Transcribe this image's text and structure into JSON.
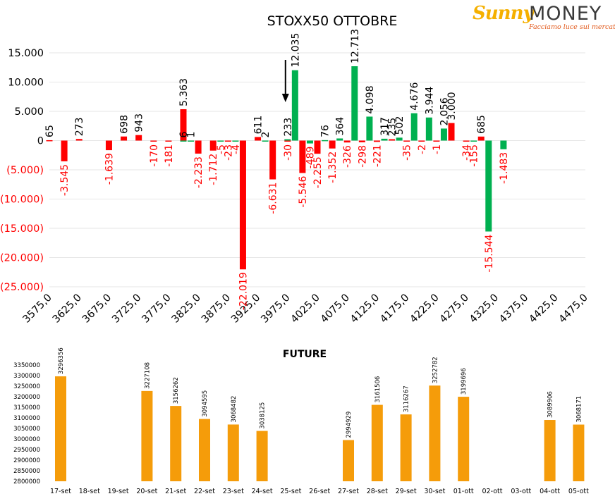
{
  "logo": {
    "brand_left": "Sunny",
    "brand_right": "MONEY",
    "tagline": "Facciamo luce sui mercati"
  },
  "colors": {
    "positive": "#00b050",
    "negative": "#ff0000",
    "future_bar": "#f59c0a",
    "grid": "#e6e6e6",
    "text": "#000000"
  },
  "chart_data": [
    {
      "type": "bar",
      "title": "STOXX50 OTTOBRE",
      "xlabel": "",
      "ylabel": "",
      "ylim": [
        -25000,
        15000
      ],
      "y_ticks": [
        15000,
        10000,
        5000,
        0,
        -5000,
        -10000,
        -15000,
        -20000,
        -25000
      ],
      "y_tick_labels": [
        "15.000",
        "10.000",
        "5.000",
        "0",
        "(5.000)",
        "(10.000)",
        "(15.000)",
        "(20.000)",
        "(25.000)"
      ],
      "x_tick_labels": [
        "3575,0",
        "3625,0",
        "3675,0",
        "3725,0",
        "3775,0",
        "3825,0",
        "3875,0",
        "3925,0",
        "3975,0",
        "4025,0",
        "4075,0",
        "4125,0",
        "4175,0",
        "4225,0",
        "4275,0",
        "4325,0",
        "4375,0",
        "4425,0",
        "4475,0"
      ],
      "grid": true,
      "annotation": "arrow pointing down at 3975,0",
      "series": [
        {
          "color": "#ff0000",
          "points": [
            {
              "strike": 3575,
              "value": 65,
              "label": "65"
            },
            {
              "strike": 3600,
              "value": -3545,
              "label": "-3.545"
            },
            {
              "strike": 3625,
              "value": 273,
              "label": "273"
            },
            {
              "strike": 3675,
              "value": -1639,
              "label": "-1.639"
            },
            {
              "strike": 3700,
              "value": 698,
              "label": "698"
            },
            {
              "strike": 3725,
              "value": 943,
              "label": "943"
            },
            {
              "strike": 3750,
              "value": -170,
              "label": "-170"
            },
            {
              "strike": 3775,
              "value": -181,
              "label": "-181"
            },
            {
              "strike": 3800,
              "value": 5363,
              "label": "5.363"
            },
            {
              "strike": 3825,
              "value": -2233,
              "label": "-2.233"
            },
            {
              "strike": 3850,
              "value": -1712,
              "label": "-1.712"
            },
            {
              "strike": 3875,
              "value": -23,
              "label": "-23"
            },
            {
              "strike": 3900,
              "value": -22019,
              "label": "-22.019"
            },
            {
              "strike": 3925,
              "value": 611,
              "label": "611"
            },
            {
              "strike": 3950,
              "value": -6631,
              "label": "-6.631"
            },
            {
              "strike": 3975,
              "value": -30,
              "label": "-30"
            },
            {
              "strike": 4000,
              "value": -5546,
              "label": "-5.546"
            },
            {
              "strike": 4025,
              "value": -2255,
              "label": "-2.255"
            },
            {
              "strike": 4050,
              "value": -1352,
              "label": "-1.352"
            },
            {
              "strike": 4075,
              "value": -326,
              "label": "-326"
            },
            {
              "strike": 4100,
              "value": -298,
              "label": "-298"
            },
            {
              "strike": 4125,
              "value": -221,
              "label": "-221"
            },
            {
              "strike": 4150,
              "value": 235,
              "label": "235"
            },
            {
              "strike": 4175,
              "value": -35,
              "label": "-35"
            },
            {
              "strike": 4200,
              "value": -2,
              "label": "-2"
            },
            {
              "strike": 4225,
              "value": -1,
              "label": "-1"
            },
            {
              "strike": 4250,
              "value": 3000,
              "label": "3.000"
            },
            {
              "strike": 4275,
              "value": -34,
              "label": "-34"
            },
            {
              "strike": 4300,
              "value": 685,
              "label": "685"
            }
          ]
        },
        {
          "color": "#00b050",
          "points": [
            {
              "strike": 3800,
              "value": 6,
              "label": "6"
            },
            {
              "strike": 3812.5,
              "value": 1,
              "label": "1"
            },
            {
              "strike": 3862.5,
              "value": -5,
              "label": "-5"
            },
            {
              "strike": 3887.5,
              "value": -4,
              "label": "-4"
            },
            {
              "strike": 3937.5,
              "value": 2,
              "label": "2"
            },
            {
              "strike": 3975,
              "value": 233,
              "label": "233"
            },
            {
              "strike": 3987.5,
              "value": 12035,
              "label": "12.035"
            },
            {
              "strike": 4012.5,
              "value": -489,
              "label": "-489"
            },
            {
              "strike": 4037.5,
              "value": 76,
              "label": "76"
            },
            {
              "strike": 4062.5,
              "value": 364,
              "label": "364"
            },
            {
              "strike": 4087.5,
              "value": 12713,
              "label": "12.713"
            },
            {
              "strike": 4112.5,
              "value": 4098,
              "label": "4.098"
            },
            {
              "strike": 4137.5,
              "value": 317,
              "label": "317"
            },
            {
              "strike": 4162.5,
              "value": 502,
              "label": "502"
            },
            {
              "strike": 4187.5,
              "value": 4676,
              "label": "4.676"
            },
            {
              "strike": 4212.5,
              "value": 3944,
              "label": "3.944"
            },
            {
              "strike": 4237.5,
              "value": 2056,
              "label": "2.056"
            },
            {
              "strike": 4287.5,
              "value": -155,
              "label": "-155"
            },
            {
              "strike": 4312.5,
              "value": -15544,
              "label": "-15.544"
            },
            {
              "strike": 4337.5,
              "value": -1483,
              "label": "-1.483"
            }
          ]
        }
      ]
    },
    {
      "type": "bar",
      "title": "FUTURE",
      "xlabel": "",
      "ylabel": "",
      "ylim": [
        2800000,
        3350000
      ],
      "y_ticks": [
        2800000,
        2850000,
        2900000,
        2950000,
        3000000,
        3050000,
        3100000,
        3150000,
        3200000,
        3250000,
        3300000,
        3350000
      ],
      "y_tick_labels": [
        "2800000",
        "2850000",
        "2900000",
        "2950000",
        "3000000",
        "3050000",
        "3100000",
        "3150000",
        "3200000",
        "3250000",
        "3300000",
        "3350000"
      ],
      "grid": false,
      "categories": [
        "17-set",
        "18-set",
        "19-set",
        "20-set",
        "21-set",
        "22-set",
        "23-set",
        "24-set",
        "25-set",
        "26-set",
        "27-set",
        "28-set",
        "29-set",
        "30-set",
        "01-ott",
        "02-ott",
        "03-ott",
        "04-ott",
        "05-ott"
      ],
      "values": [
        3296356,
        null,
        null,
        3227108,
        3156262,
        3094595,
        3068482,
        3038125,
        null,
        null,
        2994929,
        3161506,
        3116267,
        3252782,
        3199696,
        null,
        null,
        3089906,
        3068171
      ],
      "value_labels": [
        "3296356",
        "",
        "",
        "3227108",
        "3156262",
        "3094595",
        "3068482",
        "3038125",
        "",
        "",
        "2994929",
        "3161506",
        "3116267",
        "3252782",
        "3199696",
        "",
        "",
        "3089906",
        "3068171"
      ]
    }
  ]
}
